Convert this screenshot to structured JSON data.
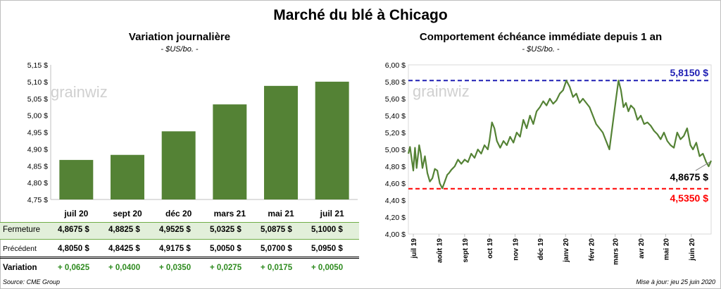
{
  "main_title": "Marché du blé à Chicago",
  "left": {
    "title": "Variation journalière",
    "subtitle": "- $US/bo. -",
    "watermark": "grainwiz"
  },
  "right": {
    "title": "Comportement échéance immédiate depuis 1 an",
    "subtitle": "- $US/bo. -",
    "watermark": "grainwiz",
    "labels": {
      "max": "5,8150 $",
      "last": "4,8675 $",
      "min": "4,5350 $"
    }
  },
  "table": {
    "rows": [
      {
        "label": "Fermeture",
        "cells": [
          "4,8675 $",
          "4,8825 $",
          "4,9525 $",
          "5,0325 $",
          "5,0875 $",
          "5,1000 $"
        ]
      },
      {
        "label": "Précédent",
        "cells": [
          "4,8050 $",
          "4,8425 $",
          "4,9175 $",
          "5,0050 $",
          "5,0700 $",
          "5,0950 $"
        ]
      },
      {
        "label": "Variation",
        "cells": [
          "+ 0,0625",
          "+ 0,0400",
          "+ 0,0350",
          "+ 0,0275",
          "+ 0,0175",
          "+ 0,0050"
        ]
      }
    ]
  },
  "footer": {
    "source": "Source: CME Group",
    "updated": "Mise à jour: jeu 25 juin 2020"
  },
  "colors": {
    "bar": "#548235",
    "line": "#548235",
    "max_line": "#1f1fb4",
    "min_line": "#ff0000",
    "fermeture_bg": "#e2efda",
    "variation_text": "#2e8b1f"
  },
  "chart_data": [
    {
      "type": "bar",
      "title": "Variation journalière",
      "subtitle": "- $US/bo. -",
      "categories": [
        "juil 20",
        "sept 20",
        "déc 20",
        "mars 21",
        "mai 21",
        "juil 21"
      ],
      "values": [
        4.8675,
        4.8825,
        4.9525,
        5.0325,
        5.0875,
        5.1
      ],
      "ylim": [
        4.75,
        5.15
      ],
      "yticks": [
        "4,75 $",
        "4,80 $",
        "4,85 $",
        "4,90 $",
        "4,95 $",
        "5,00 $",
        "5,05 $",
        "5,10 $",
        "5,15 $"
      ],
      "ytick_values": [
        4.75,
        4.8,
        4.85,
        4.9,
        4.95,
        5.0,
        5.05,
        5.1,
        5.15
      ],
      "grid": false
    },
    {
      "type": "line",
      "title": "Comportement échéance immédiate depuis 1 an",
      "subtitle": "- $US/bo. -",
      "ylim": [
        4.0,
        6.0
      ],
      "yticks": [
        "4,00 $",
        "4,20 $",
        "4,40 $",
        "4,60 $",
        "4,80 $",
        "5,00 $",
        "5,20 $",
        "5,40 $",
        "5,60 $",
        "5,80 $",
        "6,00 $"
      ],
      "ytick_values": [
        4.0,
        4.2,
        4.4,
        4.6,
        4.8,
        5.0,
        5.2,
        5.4,
        5.6,
        5.8,
        6.0
      ],
      "xticks": [
        "juil 19",
        "août 19",
        "sept 19",
        "oct 19",
        "nov 19",
        "déc 19",
        "janv 20",
        "févr 20",
        "mars 20",
        "avr 20",
        "mai 20",
        "juin 20"
      ],
      "xtick_dates": [
        "2019-07-01",
        "2019-08-01",
        "2019-09-01",
        "2019-10-01",
        "2019-11-01",
        "2019-12-01",
        "2020-01-01",
        "2020-02-01",
        "2020-03-01",
        "2020-04-01",
        "2020-05-01",
        "2020-06-01"
      ],
      "xlim": [
        "2019-06-25",
        "2020-06-25"
      ],
      "reference_lines": [
        {
          "value": 5.815,
          "label": "5,8150 $",
          "color": "#1f1fb4"
        },
        {
          "value": 4.535,
          "label": "4,5350 $",
          "color": "#ff0000"
        }
      ],
      "last_value": 4.8675,
      "series": [
        {
          "dates": [
            "2019-06-25",
            "2019-06-27",
            "2019-07-01",
            "2019-07-03",
            "2019-07-05",
            "2019-07-08",
            "2019-07-10",
            "2019-07-12",
            "2019-07-15",
            "2019-07-18",
            "2019-07-21",
            "2019-07-24",
            "2019-07-27",
            "2019-07-30",
            "2019-08-02",
            "2019-08-05",
            "2019-08-08",
            "2019-08-11",
            "2019-08-13",
            "2019-08-16",
            "2019-08-20",
            "2019-08-24",
            "2019-08-28",
            "2019-09-01",
            "2019-09-05",
            "2019-09-09",
            "2019-09-13",
            "2019-09-17",
            "2019-09-21",
            "2019-09-25",
            "2019-09-29",
            "2019-10-01",
            "2019-10-04",
            "2019-10-07",
            "2019-10-10",
            "2019-10-14",
            "2019-10-18",
            "2019-10-22",
            "2019-10-26",
            "2019-10-30",
            "2019-11-03",
            "2019-11-07",
            "2019-11-11",
            "2019-11-15",
            "2019-11-19",
            "2019-11-23",
            "2019-11-27",
            "2019-12-01",
            "2019-12-05",
            "2019-12-09",
            "2019-12-13",
            "2019-12-17",
            "2019-12-21",
            "2019-12-25",
            "2019-12-29",
            "2020-01-02",
            "2020-01-06",
            "2020-01-10",
            "2020-01-14",
            "2020-01-18",
            "2020-01-22",
            "2020-01-26",
            "2020-01-30",
            "2020-02-03",
            "2020-02-07",
            "2020-02-11",
            "2020-02-15",
            "2020-02-19",
            "2020-02-23",
            "2020-02-27",
            "2020-03-02",
            "2020-03-05",
            "2020-03-08",
            "2020-03-11",
            "2020-03-14",
            "2020-03-17",
            "2020-03-20",
            "2020-03-24",
            "2020-03-28",
            "2020-04-01",
            "2020-04-05",
            "2020-04-09",
            "2020-04-13",
            "2020-04-17",
            "2020-04-21",
            "2020-04-25",
            "2020-04-29",
            "2020-05-03",
            "2020-05-07",
            "2020-05-11",
            "2020-05-15",
            "2020-05-19",
            "2020-05-23",
            "2020-05-27",
            "2020-05-31",
            "2020-06-03",
            "2020-06-07",
            "2020-06-11",
            "2020-06-15",
            "2020-06-19",
            "2020-06-22",
            "2020-06-25"
          ],
          "values": [
            4.95,
            5.03,
            4.75,
            5.02,
            4.78,
            5.05,
            4.95,
            4.78,
            4.92,
            4.72,
            4.62,
            4.66,
            4.77,
            4.75,
            4.6,
            4.54,
            4.62,
            4.7,
            4.72,
            4.76,
            4.8,
            4.88,
            4.83,
            4.88,
            4.85,
            4.95,
            4.9,
            5.0,
            4.95,
            5.05,
            5.0,
            5.1,
            5.32,
            5.25,
            5.1,
            5.02,
            5.1,
            5.05,
            5.15,
            5.08,
            5.2,
            5.15,
            5.35,
            5.25,
            5.4,
            5.3,
            5.45,
            5.5,
            5.57,
            5.52,
            5.6,
            5.54,
            5.58,
            5.66,
            5.7,
            5.815,
            5.74,
            5.62,
            5.66,
            5.55,
            5.6,
            5.55,
            5.5,
            5.4,
            5.3,
            5.25,
            5.2,
            5.1,
            5.0,
            5.3,
            5.6,
            5.815,
            5.7,
            5.5,
            5.55,
            5.45,
            5.52,
            5.48,
            5.35,
            5.4,
            5.3,
            5.32,
            5.28,
            5.22,
            5.18,
            5.12,
            5.2,
            5.1,
            5.05,
            5.02,
            5.2,
            5.12,
            5.16,
            5.25,
            5.05,
            5.0,
            5.08,
            4.92,
            4.95,
            4.85,
            4.8,
            4.8675
          ]
        }
      ]
    }
  ]
}
